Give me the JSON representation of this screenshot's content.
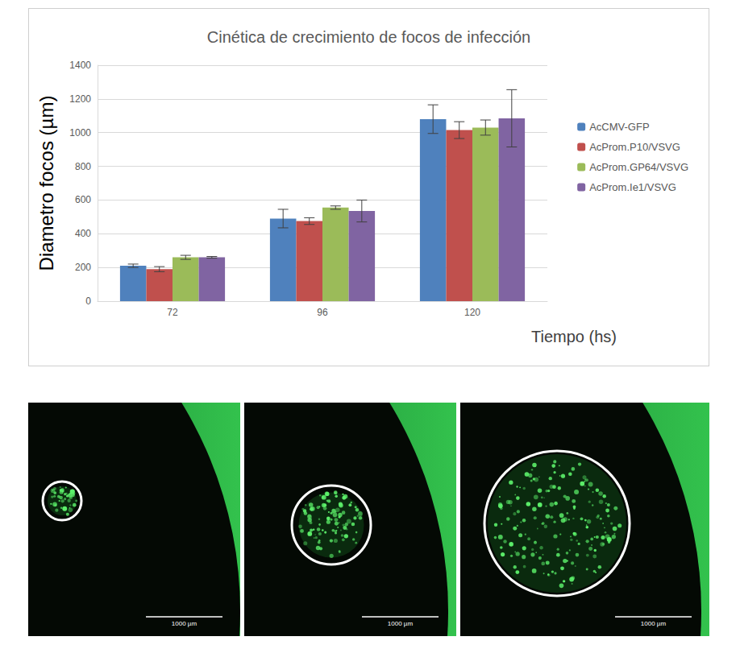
{
  "chart_data": {
    "type": "bar",
    "title": "Cinética de crecimiento de focos de infección",
    "x_label": "Tiempo (hs)",
    "y_label": "Diametro focos (µm)",
    "categories": [
      "72",
      "96",
      "120"
    ],
    "series": [
      {
        "name": "AcCMV-GFP",
        "color": "#4f81bd",
        "values": [
          210,
          490,
          1080
        ],
        "errors": [
          10,
          55,
          85
        ]
      },
      {
        "name": "AcProm.P10/VSVG",
        "color": "#c0504d",
        "values": [
          190,
          475,
          1015
        ],
        "errors": [
          15,
          20,
          50
        ]
      },
      {
        "name": "AcProm.GP64/VSVG",
        "color": "#9bbb59",
        "values": [
          260,
          555,
          1030
        ],
        "errors": [
          12,
          10,
          45
        ]
      },
      {
        "name": "AcProm.Ie1/VSVG",
        "color": "#8064a2",
        "values": [
          260,
          535,
          1085
        ],
        "errors": [
          5,
          65,
          170
        ]
      }
    ],
    "ylim": [
      0,
      1400
    ],
    "yticks": [
      0,
      200,
      400,
      600,
      800,
      1000,
      1200,
      1400
    ],
    "grid": true,
    "legend": "right"
  },
  "micrographs": [
    {
      "scale_bar": "1000 µm"
    },
    {
      "scale_bar": "1000 µm"
    },
    {
      "scale_bar": "1000 µm"
    }
  ]
}
